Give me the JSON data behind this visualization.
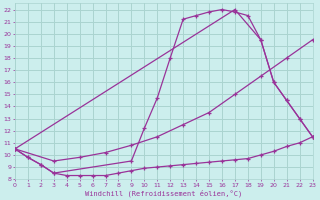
{
  "xlabel": "Windchill (Refroidissement éolien,°C)",
  "bg_color": "#cceeed",
  "grid_color": "#aad4d0",
  "line_color": "#993399",
  "xlim": [
    0,
    23
  ],
  "ylim": [
    8,
    22.5
  ],
  "yticks": [
    8,
    9,
    10,
    11,
    12,
    13,
    14,
    15,
    16,
    17,
    18,
    19,
    20,
    21,
    22
  ],
  "xticks": [
    0,
    1,
    2,
    3,
    4,
    5,
    6,
    7,
    8,
    9,
    10,
    11,
    12,
    13,
    14,
    15,
    16,
    17,
    18,
    19,
    20,
    21,
    22,
    23
  ],
  "series1_x": [
    0,
    1,
    2,
    3,
    4,
    5,
    6,
    7,
    8,
    9,
    10,
    11,
    12,
    13,
    14,
    15,
    16,
    17,
    18,
    19,
    20,
    21,
    22,
    23
  ],
  "series1_y": [
    10.5,
    9.8,
    9.2,
    8.5,
    8.3,
    8.3,
    8.3,
    8.3,
    8.5,
    8.7,
    8.9,
    9.0,
    9.1,
    9.2,
    9.3,
    9.4,
    9.5,
    9.6,
    9.7,
    10.0,
    10.3,
    10.7,
    11.0,
    11.5
  ],
  "series2_x": [
    0,
    3,
    5,
    7,
    9,
    11,
    13,
    15,
    17,
    19,
    21,
    23
  ],
  "series2_y": [
    10.5,
    9.5,
    9.8,
    10.2,
    10.8,
    11.5,
    12.5,
    13.5,
    15.0,
    16.5,
    18.0,
    19.5
  ],
  "series3_x": [
    0,
    1,
    2,
    3,
    9,
    10,
    11,
    12,
    13,
    14,
    15,
    16,
    17,
    18,
    19,
    20,
    21,
    22,
    23
  ],
  "series3_y": [
    10.5,
    9.8,
    9.2,
    8.5,
    9.5,
    12.2,
    14.7,
    18.0,
    21.2,
    21.5,
    21.8,
    22.0,
    21.8,
    21.5,
    19.5,
    16.0,
    14.5,
    13.0,
    11.5
  ],
  "series4_x": [
    0,
    17,
    19,
    20,
    21,
    22,
    23
  ],
  "series4_y": [
    10.5,
    22.0,
    19.5,
    16.0,
    14.5,
    13.0,
    11.5
  ]
}
